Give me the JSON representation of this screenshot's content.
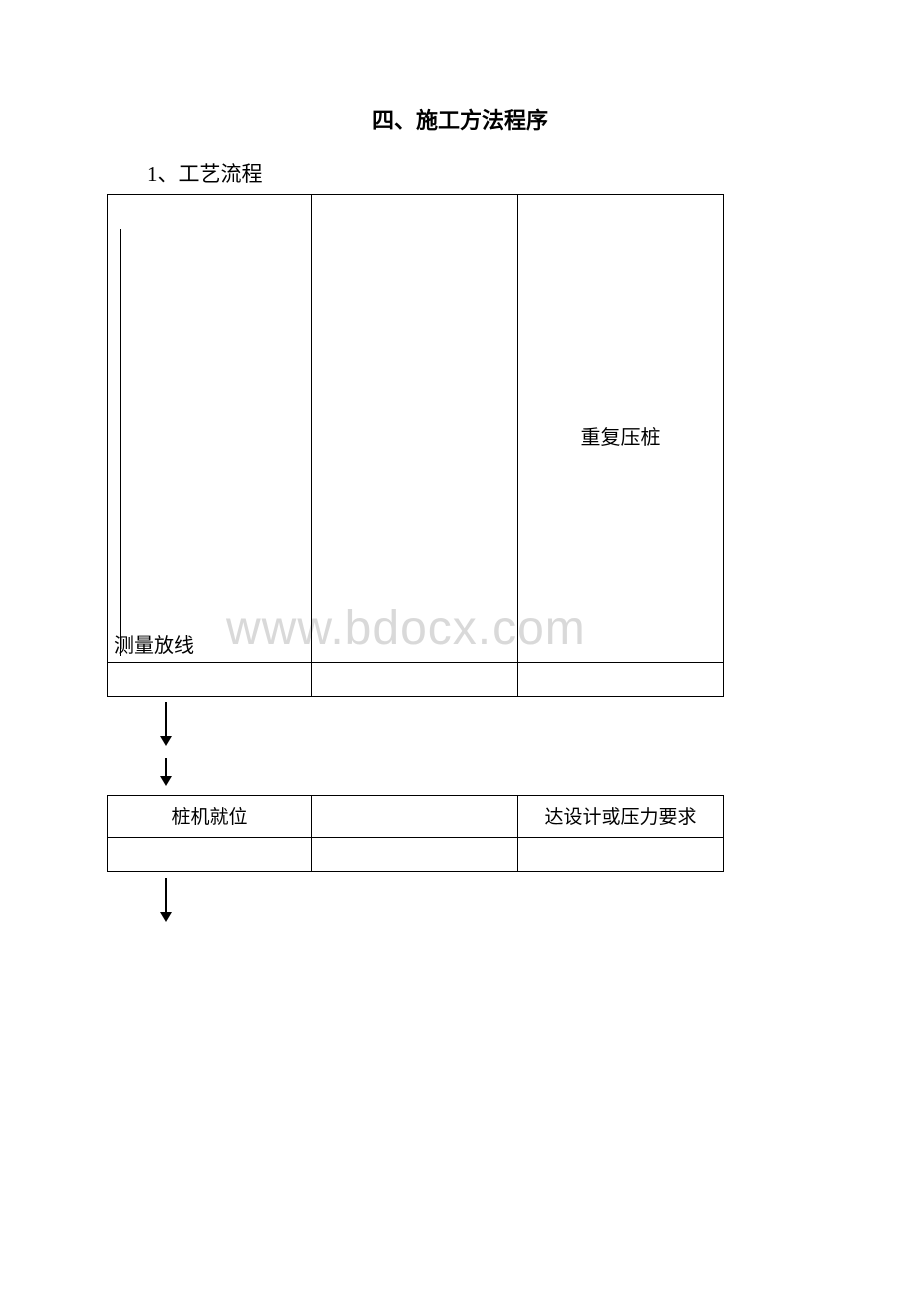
{
  "page": {
    "title": "四、施工方法程序",
    "subtitle": "1、工艺流程",
    "watermark": "www.bdocx.com"
  },
  "table1": {
    "rows": [
      {
        "c1": "测量放线",
        "c2": "",
        "c3": "重复压桩"
      },
      {
        "c1": "",
        "c2": "",
        "c3": ""
      }
    ],
    "border_color": "#000000",
    "font_size": 20
  },
  "table2": {
    "rows": [
      {
        "c1": "桩机就位",
        "c2": "",
        "c3": "达设计或压力要求"
      },
      {
        "c1": "",
        "c2": "",
        "c3": ""
      }
    ],
    "border_color": "#000000",
    "font_size": 19
  },
  "arrows": {
    "color": "#000000"
  },
  "background_color": "#ffffff",
  "text_color": "#000000",
  "watermark_color": "#d9d9d9"
}
